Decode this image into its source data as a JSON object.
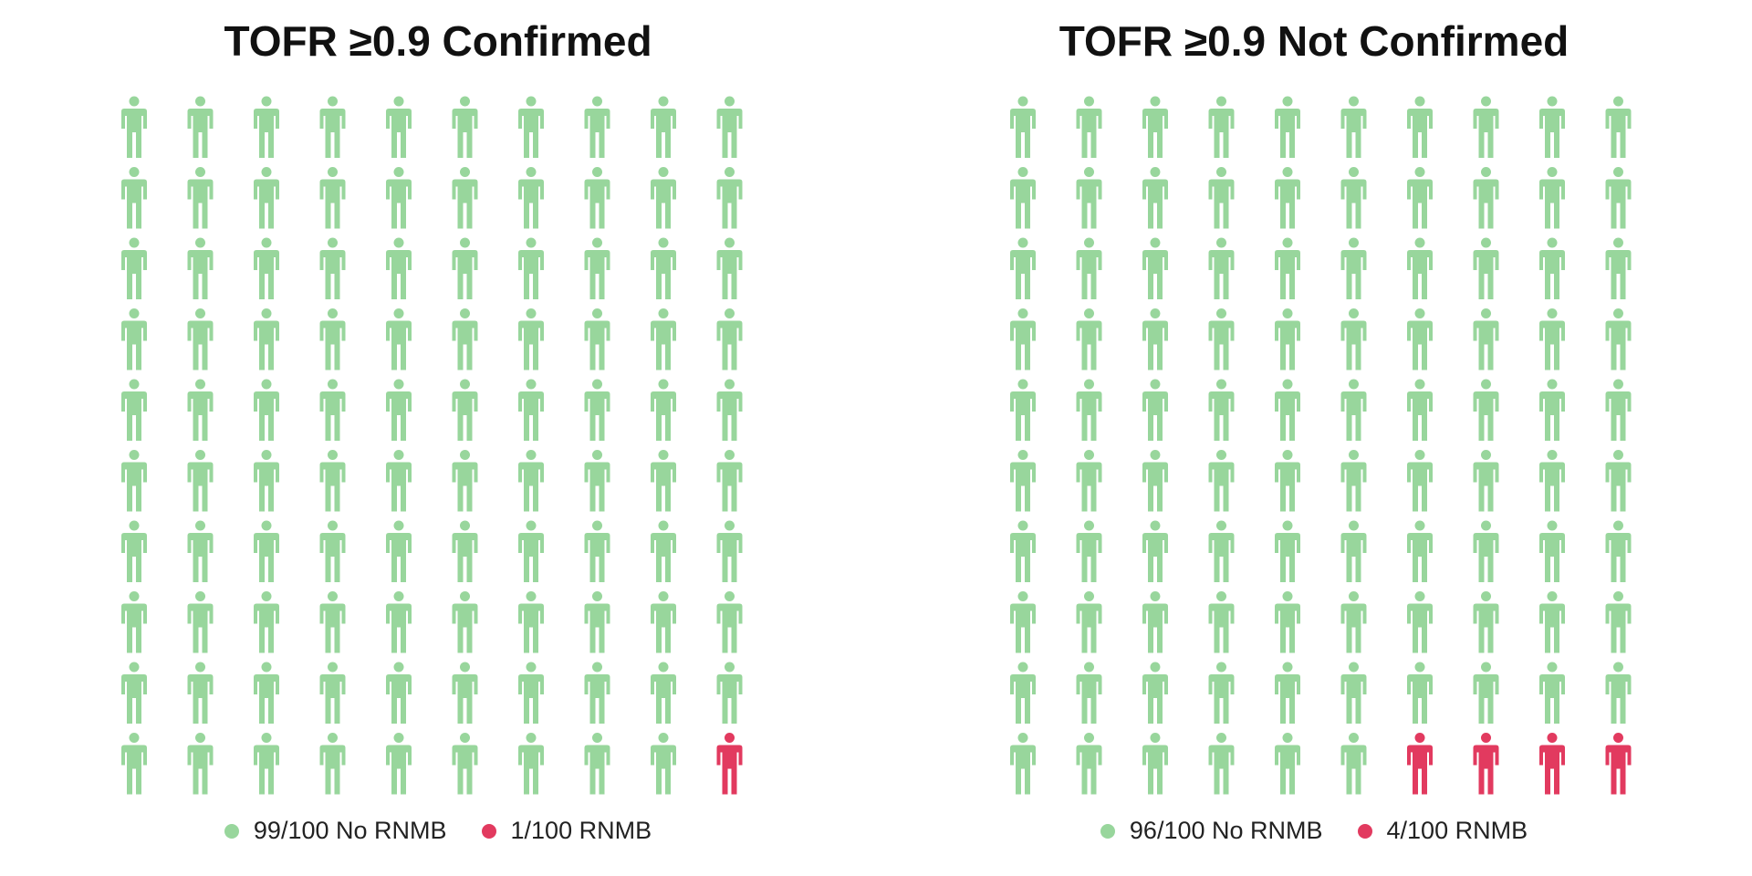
{
  "colors": {
    "no_rnmb": "#98d69c",
    "rnmb": "#e23a5f",
    "background": "#ffffff"
  },
  "chart_data": [
    {
      "type": "pictogram",
      "title": "TOFR ≥0.9 Confirmed",
      "rows": 10,
      "cols": 10,
      "icon": "person-icon",
      "series": [
        {
          "name": "99/100 No RNMB",
          "value": 99,
          "color": "#98d69c"
        },
        {
          "name": "1/100 RNMB",
          "value": 1,
          "color": "#e23a5f"
        }
      ],
      "legend_placement": "bottom"
    },
    {
      "type": "pictogram",
      "title": "TOFR ≥0.9 Not Confirmed",
      "rows": 10,
      "cols": 10,
      "icon": "person-icon",
      "series": [
        {
          "name": "96/100 No RNMB",
          "value": 96,
          "color": "#98d69c"
        },
        {
          "name": "4/100 RNMB",
          "value": 4,
          "color": "#e23a5f"
        }
      ],
      "legend_placement": "bottom"
    }
  ]
}
